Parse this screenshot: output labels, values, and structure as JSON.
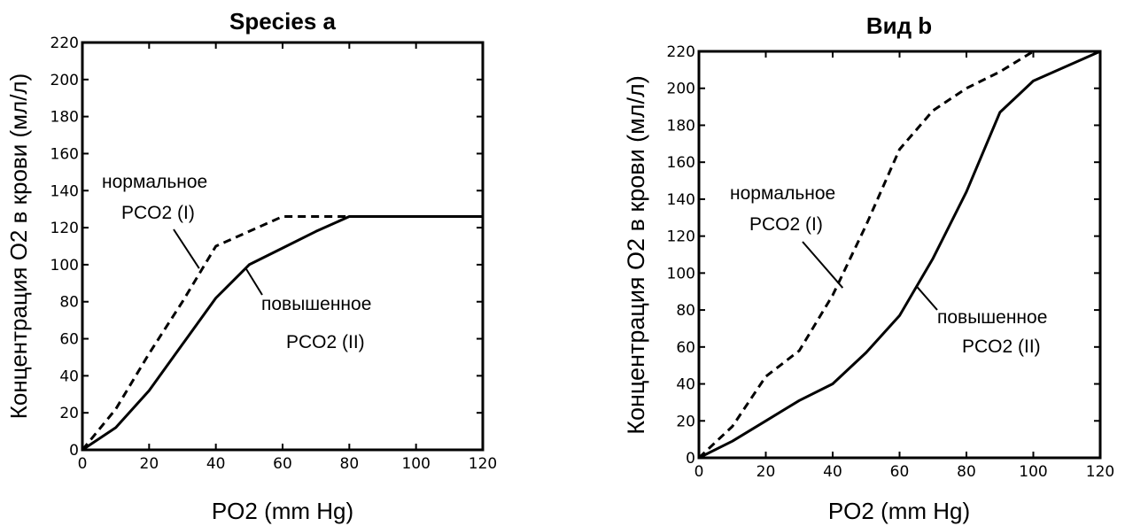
{
  "chart_data": [
    {
      "type": "line",
      "title": "Species a",
      "xlabel": "PO2 (mm Hg)",
      "ylabel": "Концентрация O2 в крови (мл/л)",
      "xlim": [
        0,
        120
      ],
      "ylim": [
        0,
        220
      ],
      "x_ticks": [
        0,
        20,
        40,
        60,
        80,
        100,
        120
      ],
      "y_ticks": [
        0,
        20,
        40,
        60,
        80,
        100,
        120,
        140,
        160,
        180,
        200,
        220
      ],
      "grid": false,
      "series": [
        {
          "line_style": "dashed",
          "x": [
            0,
            10,
            20,
            30,
            40,
            60,
            80,
            120
          ],
          "y": [
            0,
            22,
            52,
            80,
            110,
            126,
            126,
            126
          ]
        },
        {
          "line_style": "solid",
          "x": [
            0,
            10,
            20,
            30,
            40,
            50,
            60,
            70,
            80,
            120
          ],
          "y": [
            0,
            12,
            32,
            57,
            82,
            100,
            109,
            118,
            126,
            126
          ]
        }
      ],
      "annotations": [
        {
          "lines": [
            "нормальное",
            "PCO2 (I)"
          ],
          "points_to": [
            35,
            98
          ]
        },
        {
          "lines": [
            "повышенное",
            "PCO2 (II)"
          ],
          "points_to": [
            49,
            98
          ]
        }
      ]
    },
    {
      "type": "line",
      "title": "Вид b",
      "xlabel": "PO2 (mm Hg)",
      "ylabel": "Концентрация O2 в крови (мл/л)",
      "xlim": [
        0,
        120
      ],
      "ylim": [
        0,
        220
      ],
      "x_ticks": [
        0,
        20,
        40,
        60,
        80,
        100,
        120
      ],
      "y_ticks": [
        0,
        20,
        40,
        60,
        80,
        100,
        120,
        140,
        160,
        180,
        200,
        220
      ],
      "grid": false,
      "series": [
        {
          "line_style": "dashed",
          "x": [
            0,
            10,
            20,
            30,
            40,
            50,
            60,
            70,
            80,
            90,
            100
          ],
          "y": [
            0,
            17,
            44,
            58,
            88,
            126,
            167,
            188,
            200,
            209,
            220
          ]
        },
        {
          "line_style": "solid",
          "x": [
            0,
            10,
            20,
            30,
            40,
            50,
            60,
            70,
            80,
            90,
            100,
            120
          ],
          "y": [
            0,
            9,
            20,
            31,
            40,
            57,
            77,
            108,
            144,
            187,
            204,
            220
          ]
        }
      ],
      "annotations": [
        {
          "lines": [
            "нормальное",
            "PCO2 (I)"
          ],
          "points_to": [
            43,
            92
          ]
        },
        {
          "lines": [
            "повышенное",
            "PCO2 (II)"
          ],
          "points_to": [
            65,
            93
          ]
        }
      ]
    }
  ]
}
